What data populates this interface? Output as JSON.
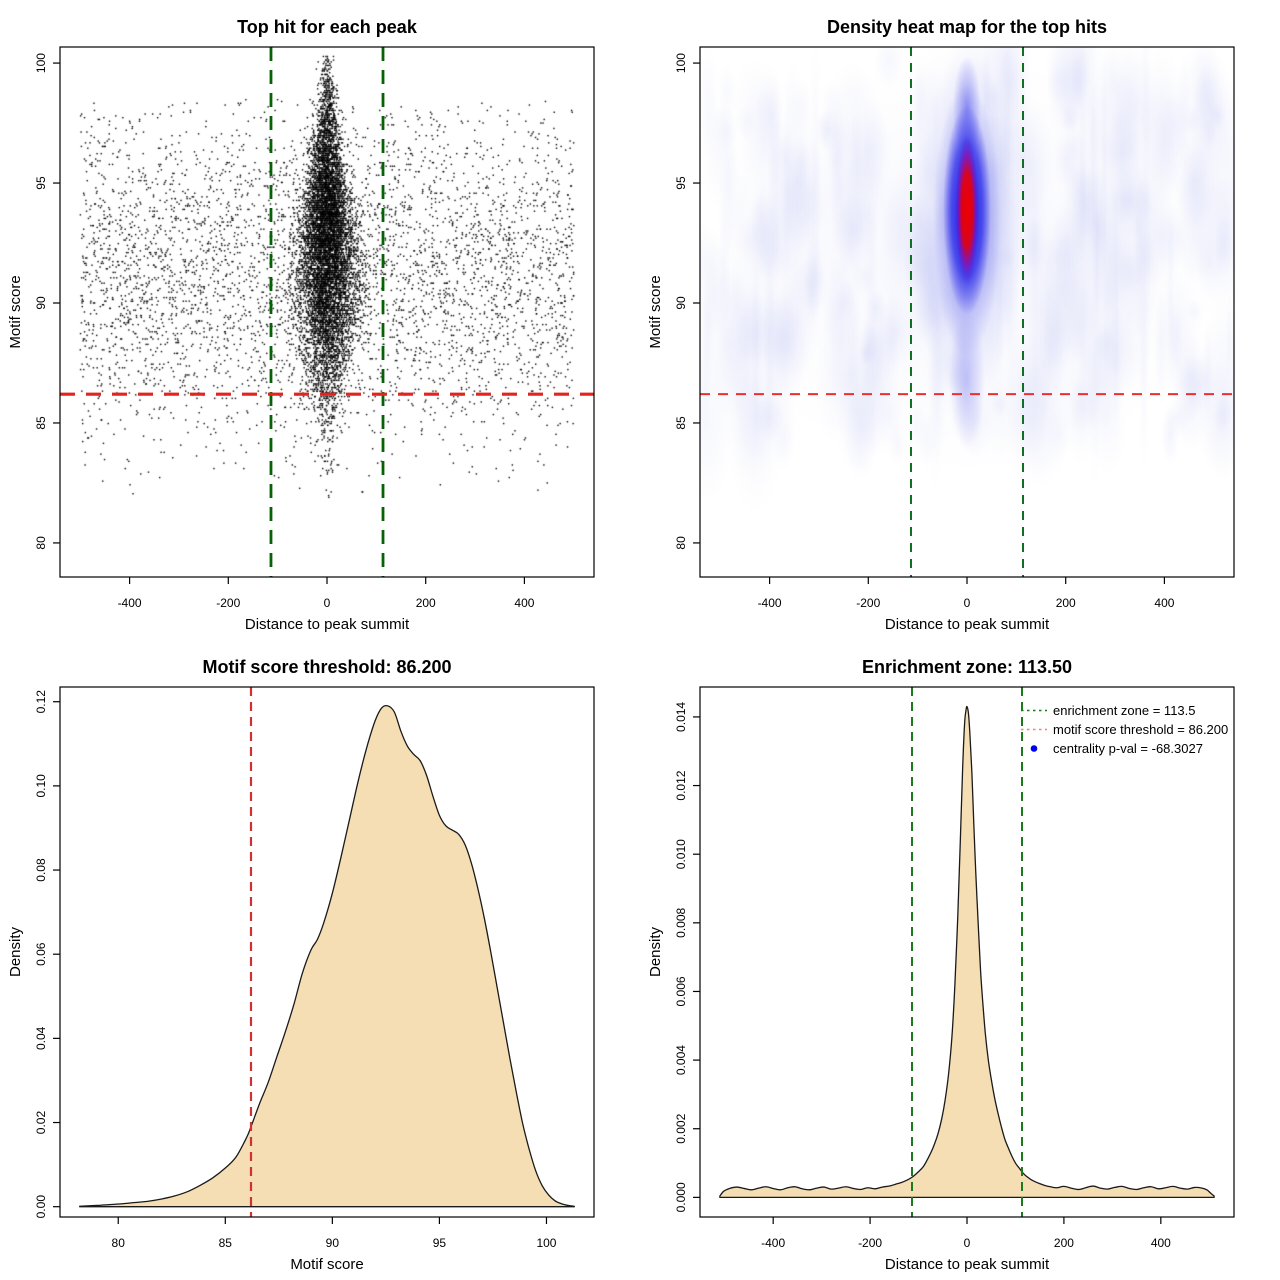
{
  "figure": {
    "background": "#FFFFFF"
  },
  "chart_data": [
    {
      "type": "scatter",
      "title": "Top hit for each peak",
      "xlabel": "Distance to peak summit",
      "ylabel": "Motif score",
      "xlim": [
        -541,
        541
      ],
      "ylim": [
        78.58,
        100.67
      ],
      "xticks": {
        "values": [
          -400,
          -200,
          0,
          200,
          400
        ],
        "labels": [
          "-400",
          "-200",
          "0",
          "200",
          "400"
        ]
      },
      "yticks": {
        "values": [
          80,
          85,
          90,
          95,
          100
        ],
        "labels": [
          "80",
          "85",
          "90",
          "95",
          "100"
        ]
      },
      "grid": false,
      "legend_position": "none",
      "point_color": "#000000",
      "vlines": {
        "x": [
          -113.5,
          113.5
        ],
        "color": "#076207",
        "width": 2.8,
        "dash": [
          14,
          9
        ],
        "meaning": "enrichment zone = 113.5"
      },
      "hlines": {
        "y": [
          86.2
        ],
        "color": "#E2231E",
        "width": 3.2,
        "dash": [
          15,
          11
        ],
        "meaning": "motif score threshold = 86.200"
      },
      "distribution": {
        "seed": 1337,
        "background": {
          "n": 4300,
          "x_min": -500,
          "x_max": 500,
          "y_mean": 91.2,
          "y_sd": 3.5,
          "y_min": 82.0,
          "y_max": 98.5
        },
        "cluster": {
          "n": 8200,
          "y_mean": 92.4,
          "y_sd": 3.1,
          "y_min": 79.3,
          "y_max": 100.3,
          "x_sd_max": 34,
          "x_sd_slope": 3.0,
          "x_sd_min": 7,
          "y_widest": 90.6
        },
        "score_quantum": 0.075
      }
    },
    {
      "type": "heatmap",
      "title": "Density heat map for the top hits",
      "xlabel": "Distance to peak summit",
      "ylabel": "Motif score",
      "xlim": [
        -541,
        541
      ],
      "ylim": [
        78.58,
        100.67
      ],
      "xticks": {
        "values": [
          -400,
          -200,
          0,
          200,
          400
        ],
        "labels": [
          "-400",
          "-200",
          "0",
          "200",
          "400"
        ]
      },
      "yticks": {
        "values": [
          80,
          85,
          90,
          95,
          100
        ],
        "labels": [
          "80",
          "85",
          "90",
          "95",
          "100"
        ]
      },
      "grid": false,
      "legend_position": "none",
      "vlines": {
        "x": [
          -113.5,
          113.5
        ],
        "color": "#0E6F1E",
        "width": 2.0,
        "dash": [
          9,
          7
        ],
        "meaning": "enrichment zone = 113.5"
      },
      "hlines": {
        "y": [
          86.2
        ],
        "color": "#E93030",
        "width": 2.0,
        "dash": [
          10,
          8
        ],
        "meaning": "motif score threshold = 86.200"
      },
      "heat": {
        "seed": 7,
        "core_x": 0,
        "core_y_motif": 93.9,
        "core_span_motif": [
          90.8,
          96.9
        ],
        "blue_span_motif": [
          86.5,
          99.8
        ],
        "palette": {
          "low": "#FFFFFF",
          "noise": "#A5ACF0",
          "mid": "#1212E8",
          "high": "#F00000"
        },
        "noise_blobs": 230,
        "noise_streaks": 60
      }
    },
    {
      "type": "density",
      "title": "Motif score threshold: 86.200",
      "xlabel": "Motif score",
      "ylabel": "Density",
      "xlim": [
        77.28,
        102.22
      ],
      "ylim": [
        -0.00245,
        0.1235
      ],
      "xticks": {
        "values": [
          80,
          85,
          90,
          95,
          100
        ],
        "labels": [
          "80",
          "85",
          "90",
          "95",
          "100"
        ]
      },
      "yticks": {
        "values": [
          0,
          0.02,
          0.04,
          0.06,
          0.08,
          0.1,
          0.12
        ],
        "labels": [
          "0.00",
          "0.02",
          "0.04",
          "0.06",
          "0.08",
          "0.10",
          "0.12"
        ]
      },
      "grid": false,
      "legend_position": "none",
      "fill": "#F5DEB3",
      "stroke": "#1A1A1A",
      "vlines": {
        "x": [
          86.2
        ],
        "color": "#CE3333",
        "width": 2.2,
        "dash": [
          9,
          6
        ],
        "meaning": "motif score threshold = 86.200"
      },
      "points": [
        [
          78.2,
          0.0001
        ],
        [
          79,
          0.0003
        ],
        [
          79.6,
          0.0005
        ],
        [
          80.2,
          0.0007
        ],
        [
          80.8,
          0.001
        ],
        [
          81.4,
          0.0013
        ],
        [
          82,
          0.0018
        ],
        [
          82.6,
          0.0025
        ],
        [
          83.2,
          0.0035
        ],
        [
          83.8,
          0.005
        ],
        [
          84.4,
          0.0068
        ],
        [
          85,
          0.0092
        ],
        [
          85.5,
          0.0118
        ],
        [
          86,
          0.0165
        ],
        [
          86.2,
          0.019
        ],
        [
          86.6,
          0.0245
        ],
        [
          87,
          0.0295
        ],
        [
          87.4,
          0.0355
        ],
        [
          87.8,
          0.0415
        ],
        [
          88.2,
          0.048
        ],
        [
          88.6,
          0.0555
        ],
        [
          89,
          0.061
        ],
        [
          89.3,
          0.0635
        ],
        [
          89.6,
          0.0675
        ],
        [
          90,
          0.0745
        ],
        [
          90.4,
          0.083
        ],
        [
          90.8,
          0.092
        ],
        [
          91.2,
          0.101
        ],
        [
          91.6,
          0.109
        ],
        [
          92,
          0.1155
        ],
        [
          92.3,
          0.1185
        ],
        [
          92.6,
          0.119
        ],
        [
          92.9,
          0.1175
        ],
        [
          93.2,
          0.113
        ],
        [
          93.5,
          0.1095
        ],
        [
          93.8,
          0.1075
        ],
        [
          94.1,
          0.106
        ],
        [
          94.4,
          0.1025
        ],
        [
          94.7,
          0.0975
        ],
        [
          95,
          0.093
        ],
        [
          95.3,
          0.0905
        ],
        [
          95.6,
          0.0895
        ],
        [
          95.9,
          0.0885
        ],
        [
          96.2,
          0.086
        ],
        [
          96.5,
          0.0815
        ],
        [
          96.8,
          0.0755
        ],
        [
          97.1,
          0.0685
        ],
        [
          97.4,
          0.0605
        ],
        [
          97.7,
          0.052
        ],
        [
          98,
          0.0435
        ],
        [
          98.3,
          0.035
        ],
        [
          98.6,
          0.027
        ],
        [
          98.9,
          0.0195
        ],
        [
          99.2,
          0.0135
        ],
        [
          99.5,
          0.0085
        ],
        [
          99.8,
          0.005
        ],
        [
          100.1,
          0.0028
        ],
        [
          100.4,
          0.0014
        ],
        [
          100.7,
          0.0007
        ],
        [
          101,
          0.0003
        ],
        [
          101.3,
          0.0001
        ]
      ]
    },
    {
      "type": "density",
      "title": "Enrichment zone: 113.50",
      "xlabel": "Distance to peak summit",
      "ylabel": "Density",
      "xlim": [
        -551,
        551
      ],
      "ylim": [
        -0.000572,
        0.014872
      ],
      "xticks": {
        "values": [
          -400,
          -200,
          0,
          200,
          400
        ],
        "labels": [
          "-400",
          "-200",
          "0",
          "200",
          "400"
        ]
      },
      "yticks": {
        "values": [
          0,
          0.002,
          0.004,
          0.006,
          0.008,
          0.01,
          0.012,
          0.014
        ],
        "labels": [
          "0.000",
          "0.002",
          "0.004",
          "0.006",
          "0.008",
          "0.010",
          "0.012",
          "0.014"
        ]
      },
      "grid": false,
      "fill": "#F5DEB3",
      "stroke": "#1A1A1A",
      "vlines": {
        "x": [
          -113.5,
          113.5
        ],
        "color": "#1C7A1C",
        "width": 2.0,
        "dash": [
          9,
          6
        ],
        "meaning": "enrichment zone = 113.5"
      },
      "legend_position": "top-right",
      "legend": {
        "items": [
          {
            "swatch": "dotted-line",
            "color": "#157A15",
            "label": "enrichment zone = 113.5"
          },
          {
            "swatch": "dotted-line",
            "color": "#F08080",
            "label": "motif score threshold = 86.200"
          },
          {
            "swatch": "dot",
            "color": "#0000EE",
            "label": "centrality p-val = -68.3027"
          }
        ]
      },
      "points": [
        [
          -510,
          4e-05
        ],
        [
          -502,
          0.00018
        ],
        [
          -490,
          0.00026
        ],
        [
          -475,
          0.0003
        ],
        [
          -460,
          0.00026
        ],
        [
          -445,
          0.00022
        ],
        [
          -430,
          0.00027
        ],
        [
          -415,
          0.00031
        ],
        [
          -400,
          0.00026
        ],
        [
          -385,
          0.00022
        ],
        [
          -370,
          0.00028
        ],
        [
          -355,
          0.00031
        ],
        [
          -340,
          0.00025
        ],
        [
          -325,
          0.00022
        ],
        [
          -310,
          0.00027
        ],
        [
          -295,
          0.0003
        ],
        [
          -280,
          0.00024
        ],
        [
          -265,
          0.00027
        ],
        [
          -250,
          0.00031
        ],
        [
          -235,
          0.00026
        ],
        [
          -220,
          0.00023
        ],
        [
          -205,
          0.00028
        ],
        [
          -190,
          0.00025
        ],
        [
          -175,
          0.0003
        ],
        [
          -160,
          0.00033
        ],
        [
          -148,
          0.00038
        ],
        [
          -136,
          0.00043
        ],
        [
          -124,
          0.0005
        ],
        [
          -112,
          0.0006
        ],
        [
          -100,
          0.00075
        ],
        [
          -90,
          0.0009
        ],
        [
          -80,
          0.00115
        ],
        [
          -70,
          0.00145
        ],
        [
          -60,
          0.00185
        ],
        [
          -52,
          0.0023
        ],
        [
          -45,
          0.00285
        ],
        [
          -38,
          0.0036
        ],
        [
          -31,
          0.0047
        ],
        [
          -25,
          0.0062
        ],
        [
          -19,
          0.0082
        ],
        [
          -14,
          0.0103
        ],
        [
          -9,
          0.0125
        ],
        [
          -5,
          0.0138
        ],
        [
          -2,
          0.0142
        ],
        [
          0,
          0.0143
        ],
        [
          3,
          0.0141
        ],
        [
          6,
          0.0135
        ],
        [
          10,
          0.0124
        ],
        [
          14,
          0.0109
        ],
        [
          18,
          0.0095
        ],
        [
          23,
          0.008
        ],
        [
          28,
          0.0066
        ],
        [
          33,
          0.0056
        ],
        [
          38,
          0.00475
        ],
        [
          44,
          0.004
        ],
        [
          50,
          0.00345
        ],
        [
          57,
          0.0029
        ],
        [
          64,
          0.00245
        ],
        [
          71,
          0.00205
        ],
        [
          78,
          0.0017
        ],
        [
          85,
          0.00145
        ],
        [
          92,
          0.00122
        ],
        [
          100,
          0.001
        ],
        [
          108,
          0.00085
        ],
        [
          116,
          0.0007
        ],
        [
          124,
          0.0006
        ],
        [
          132,
          0.00052
        ],
        [
          140,
          0.00046
        ],
        [
          150,
          0.0004
        ],
        [
          160,
          0.00035
        ],
        [
          172,
          0.00031
        ],
        [
          185,
          0.00028
        ],
        [
          200,
          0.00032
        ],
        [
          215,
          0.00027
        ],
        [
          230,
          0.00023
        ],
        [
          245,
          0.00028
        ],
        [
          260,
          0.00033
        ],
        [
          275,
          0.00027
        ],
        [
          290,
          0.00024
        ],
        [
          305,
          0.00029
        ],
        [
          320,
          0.00032
        ],
        [
          335,
          0.00026
        ],
        [
          350,
          0.00023
        ],
        [
          365,
          0.00028
        ],
        [
          380,
          0.00031
        ],
        [
          395,
          0.00025
        ],
        [
          410,
          0.00028
        ],
        [
          425,
          0.00032
        ],
        [
          440,
          0.00027
        ],
        [
          455,
          0.00024
        ],
        [
          470,
          0.00029
        ],
        [
          485,
          0.00027
        ],
        [
          495,
          0.00022
        ],
        [
          503,
          0.00012
        ],
        [
          510,
          4e-05
        ]
      ]
    }
  ]
}
